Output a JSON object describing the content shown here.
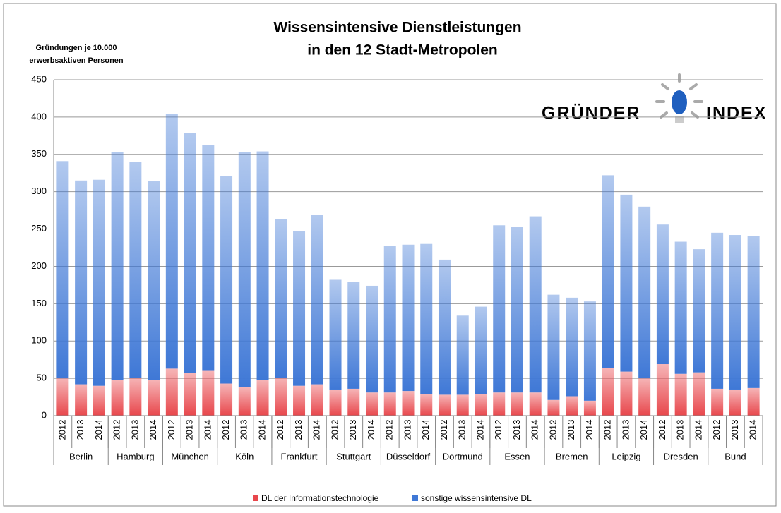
{
  "chart_data": {
    "type": "stacked_bar",
    "title": [
      "Wissensintensive Dienstleistungen",
      "in den 12 Stadt-Metropolen"
    ],
    "y_label": [
      "Gründungen je 10.000",
      "erwerbsaktiven Personen"
    ],
    "logo": [
      "GRÜNDER",
      "INDEX"
    ],
    "categories": [
      "2012",
      "2013",
      "2014",
      "2012",
      "2013",
      "2014",
      "2012",
      "2013",
      "2014",
      "2012",
      "2013",
      "2014",
      "2012",
      "2013",
      "2014",
      "2012",
      "2013",
      "2014",
      "2012",
      "2013",
      "2014",
      "2012",
      "2013",
      "2014",
      "2012",
      "2013",
      "2014",
      "2012",
      "2013",
      "2014",
      "2012",
      "2013",
      "2014",
      "2012",
      "2013",
      "2014",
      "2012",
      "2013",
      "2014"
    ],
    "groups": [
      "Berlin",
      "Hamburg",
      "München",
      "Köln",
      "Frankfurt",
      "Stuttgart",
      "Düsseldorf",
      "Dortmund",
      "Essen",
      "Bremen",
      "Leipzig",
      "Dresden",
      "Bund"
    ],
    "series": [
      {
        "name": "DL der Informationstechnologie",
        "color": "#e8474c",
        "values": [
          50,
          42,
          40,
          48,
          51,
          48,
          63,
          57,
          60,
          43,
          38,
          48,
          51,
          40,
          42,
          35,
          36,
          31,
          31,
          33,
          29,
          28,
          28,
          29,
          31,
          31,
          31,
          21,
          26,
          20,
          64,
          59,
          50,
          69,
          56,
          58,
          36,
          35,
          37
        ]
      },
      {
        "name": "sonstige wissensintensive DL",
        "color": "#3f78d6",
        "values": [
          291,
          273,
          276,
          305,
          289,
          266,
          341,
          322,
          303,
          278,
          315,
          306,
          212,
          207,
          227,
          147,
          143,
          143,
          196,
          196,
          201,
          181,
          106,
          117,
          224,
          222,
          236,
          141,
          132,
          133,
          258,
          237,
          230,
          187,
          177,
          165,
          209,
          207,
          204
        ]
      }
    ],
    "ylim": [
      0,
      450
    ],
    "yticks": [
      0,
      50,
      100,
      150,
      200,
      250,
      300,
      350,
      400,
      450
    ],
    "grid": true
  }
}
